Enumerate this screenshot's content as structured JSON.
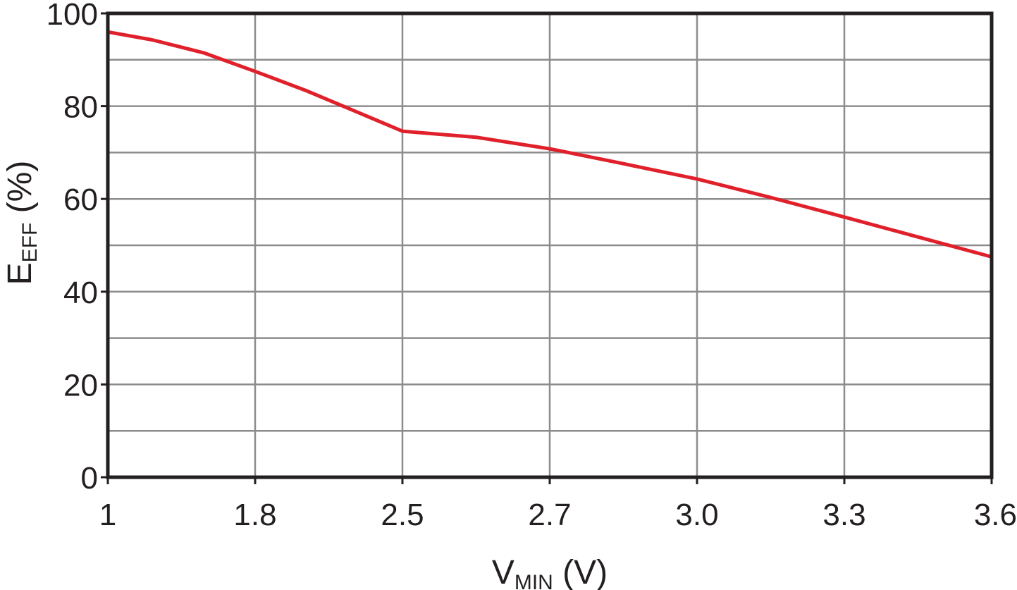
{
  "chart_data": {
    "type": "line",
    "xlabel": {
      "main": "V",
      "sub": "MIN",
      "unit": " (V)"
    },
    "ylabel": {
      "main": "E",
      "sub": "EFF",
      "unit": " (%)"
    },
    "x_categories": [
      "1",
      "1.8",
      "2.5",
      "2.7",
      "3.0",
      "3.3",
      "3.6"
    ],
    "y_ticks": [
      "0",
      "20",
      "40",
      "60",
      "80",
      "100"
    ],
    "ylim": [
      0,
      100
    ],
    "y_minor_step": 10,
    "grid": true,
    "line_color": "#e0202a",
    "series": [
      {
        "points": [
          {
            "x_pos": 0.0,
            "y": 96
          },
          {
            "x_pos": 0.3,
            "y": 94.3
          },
          {
            "x_pos": 0.65,
            "y": 91.5
          },
          {
            "x_pos": 1.0,
            "y": 87.5
          },
          {
            "x_pos": 1.35,
            "y": 83.3
          },
          {
            "x_pos": 1.65,
            "y": 79.3
          },
          {
            "x_pos": 2.0,
            "y": 74.6
          },
          {
            "x_pos": 2.5,
            "y": 73.3
          },
          {
            "x_pos": 3.0,
            "y": 70.8
          },
          {
            "x_pos": 3.5,
            "y": 67.6
          },
          {
            "x_pos": 4.0,
            "y": 64.3
          },
          {
            "x_pos": 4.5,
            "y": 60.3
          },
          {
            "x_pos": 5.0,
            "y": 56.1
          },
          {
            "x_pos": 5.5,
            "y": 51.8
          },
          {
            "x_pos": 6.0,
            "y": 47.5
          }
        ]
      }
    ]
  }
}
